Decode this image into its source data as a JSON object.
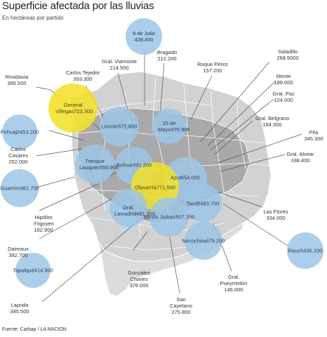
{
  "title": "Superficie afectada por las lluvias",
  "subtitle": "En hectáreas por partido",
  "source": "Fuente: Carbap / LA NACION",
  "colors": {
    "blue_bubble": "#9cc6e8",
    "yellow_bubble": "#f2e02a",
    "map_fill": "#d2d2d2",
    "affected_fill": "#a6a6a6",
    "leader": "#555555"
  },
  "partidos": [
    {
      "id": "nueve-de-julio",
      "name": "9 de Julio",
      "value": "428.400",
      "highlight": "blue"
    },
    {
      "id": "bragado",
      "name": "Bragado",
      "value": "221.200"
    },
    {
      "id": "gral-viamonte",
      "name": "Gral. Viamonte",
      "value": "214.500"
    },
    {
      "id": "roque-perez",
      "name": "Roque Pérez",
      "value": "157.200"
    },
    {
      "id": "saladillo",
      "name": "Saladillo",
      "value": "268.5000"
    },
    {
      "id": "carlos-tejedor",
      "name": "Carlos Tejedor",
      "value": "393.300"
    },
    {
      "id": "rivadavia",
      "name": "Rivadavia",
      "value": "395.500"
    },
    {
      "id": "monte",
      "name": "Monte",
      "value": "189.000"
    },
    {
      "id": "gral-paz",
      "name": "Gral. Paz",
      "value": "124.000"
    },
    {
      "id": "general-villegas",
      "name": "General Villegas",
      "value": "723.300",
      "highlight": "yellow"
    },
    {
      "id": "lincoln",
      "name": "Lincoln",
      "value": "572.800",
      "highlight": "blue"
    },
    {
      "id": "veinticinco-de-mayo",
      "name": "25 de Mayo",
      "value": "476.900",
      "highlight": "blue"
    },
    {
      "id": "gral-belgrano",
      "name": "Gral. Belgrano",
      "value": "184.300"
    },
    {
      "id": "pehuajo",
      "name": "Pehuajó",
      "value": "453.200",
      "highlight": "blue"
    },
    {
      "id": "pila",
      "name": "Pila",
      "value": "345.300"
    },
    {
      "id": "carlos-casares",
      "name": "Carlos Casares",
      "value": "252.000"
    },
    {
      "id": "gral-alvear",
      "name": "Gral. Alvear",
      "value": "338.400"
    },
    {
      "id": "trenque-lauquen",
      "name": "Trenque Lauquen",
      "value": "550.900",
      "highlight": "blue"
    },
    {
      "id": "bolivar",
      "name": "Bolívar",
      "value": "491.200",
      "highlight": "blue"
    },
    {
      "id": "guamini",
      "name": "Guaminí",
      "value": "482.700",
      "highlight": "blue"
    },
    {
      "id": "azul",
      "name": "Azul",
      "value": "654.000",
      "highlight": "blue"
    },
    {
      "id": "olavarria",
      "name": "Olavarría",
      "value": "771.500",
      "highlight": "yellow"
    },
    {
      "id": "tandil",
      "name": "Tandil",
      "value": "483.700",
      "highlight": "blue"
    },
    {
      "id": "gral-lamadrid",
      "name": "Gral. Lamadrid",
      "value": "481.100",
      "highlight": "blue"
    },
    {
      "id": "hipolito-yrigoyen",
      "name": "Hipólito Yrigoyen",
      "value": "162.900"
    },
    {
      "id": "las-flores",
      "name": "Las Flores",
      "value": "334.000"
    },
    {
      "id": "benito-juarez",
      "name": "Benito Juárez",
      "value": "507.200",
      "highlight": "blue"
    },
    {
      "id": "daireaux",
      "name": "Daireaux",
      "value": "382.700"
    },
    {
      "id": "necochea",
      "name": "Necochea",
      "value": "479.200",
      "highlight": "blue"
    },
    {
      "id": "rauch",
      "name": "Rauch",
      "value": "435.100",
      "highlight": "blue"
    },
    {
      "id": "tapalque",
      "name": "Tapalqué",
      "value": "414.900",
      "highlight": "blue"
    },
    {
      "id": "gonzales-chaves",
      "name": "Gonzales Chaves",
      "value": "378.000"
    },
    {
      "id": "gral-pueyrredon",
      "name": "Gral. Pueyrredón",
      "value": "146.000"
    },
    {
      "id": "laprida",
      "name": "Laprida",
      "value": "345.500"
    },
    {
      "id": "san-cayetano",
      "name": "San Cayetano",
      "value": "275.800"
    }
  ]
}
